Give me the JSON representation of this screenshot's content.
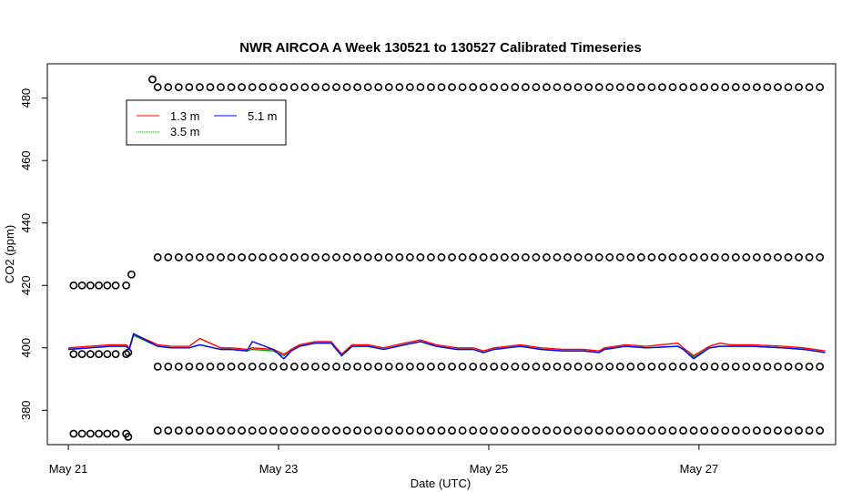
{
  "chart_data": {
    "type": "line",
    "title": "NWR AIRCOA A  Week 130521 to 130527  Calibrated Timeseries",
    "xlabel": "Date (UTC)",
    "ylabel": "CO2 (ppm)",
    "x_ticks": [
      {
        "x": 0,
        "label": "May 21"
      },
      {
        "x": 2,
        "label": "May 23"
      },
      {
        "x": 4,
        "label": "May 25"
      },
      {
        "x": 6,
        "label": "May 27"
      }
    ],
    "y_ticks": [
      380,
      400,
      420,
      440,
      460,
      480
    ],
    "xlim": [
      -0.2,
      7.3
    ],
    "ylim": [
      369,
      491
    ],
    "grid": false,
    "legend_placement": "top-left",
    "colors": {
      "red": "#ff0000",
      "green": "#00a000",
      "blue": "#0000ff"
    },
    "series": [
      {
        "name": "1.3 m",
        "color": "#ff0000",
        "x": [
          0,
          0.2,
          0.4,
          0.55,
          0.58,
          0.62,
          0.85,
          0.98,
          1.05,
          1.15,
          1.25,
          1.45,
          1.55,
          1.7,
          1.75,
          1.95,
          2.05,
          2.08,
          2.12,
          2.2,
          2.35,
          2.5,
          2.6,
          2.7,
          2.85,
          3.0,
          3.2,
          3.35,
          3.5,
          3.7,
          3.85,
          3.95,
          4.05,
          4.3,
          4.5,
          4.7,
          4.9,
          5.05,
          5.1,
          5.3,
          5.5,
          5.8,
          5.85,
          5.95,
          6.1,
          6.2,
          6.3,
          6.5,
          6.8,
          7.0,
          7.2
        ],
        "y": [
          400,
          400.5,
          401,
          401,
          400,
          404.5,
          401,
          400.5,
          400.5,
          400.5,
          403,
          400,
          400,
          399.5,
          400,
          399.5,
          398,
          398.5,
          399.5,
          401,
          402,
          402,
          398,
          401,
          401,
          400,
          401.5,
          402.5,
          401,
          400,
          400,
          399,
          400,
          401,
          400,
          399.5,
          399.5,
          399,
          400,
          401,
          400.5,
          401.5,
          400,
          397.5,
          400.5,
          401.5,
          401,
          401,
          400.5,
          400,
          399
        ]
      },
      {
        "name": "3.5 m",
        "color": "#00a000",
        "x": [
          0,
          0.2,
          0.4,
          0.55,
          0.58,
          0.62,
          0.85,
          0.98,
          1.05,
          1.15,
          1.25,
          1.45,
          1.55,
          1.7,
          1.75,
          1.95,
          2.05,
          2.08,
          2.12,
          2.2,
          2.35,
          2.5,
          2.6,
          2.7,
          2.85,
          3.0,
          3.2,
          3.35,
          3.5,
          3.7,
          3.85,
          3.95,
          4.05,
          4.3,
          4.5,
          4.7,
          4.9,
          5.05,
          5.1,
          5.3,
          5.5,
          5.8,
          5.85,
          5.95,
          6.1,
          6.2,
          6.3,
          6.5,
          6.8,
          7.0,
          7.2
        ],
        "y": [
          399.5,
          400,
          400.5,
          400.5,
          399.5,
          404,
          400.5,
          400,
          400,
          400,
          401,
          399.5,
          399.5,
          399,
          399.5,
          399,
          397.5,
          398,
          399,
          400.5,
          401.5,
          401.5,
          397.5,
          400.5,
          400.5,
          399.5,
          401,
          402,
          400.5,
          399.5,
          399.5,
          398.5,
          399.5,
          400.5,
          399.5,
          399,
          399,
          398.5,
          399.5,
          400.5,
          400,
          400.5,
          399.5,
          397,
          400,
          400.5,
          400.5,
          400.5,
          400,
          399.5,
          398.5
        ]
      },
      {
        "name": "5.1 m",
        "color": "#0000ff",
        "x": [
          0,
          0.2,
          0.4,
          0.55,
          0.58,
          0.62,
          0.85,
          0.98,
          1.05,
          1.15,
          1.25,
          1.45,
          1.55,
          1.7,
          1.75,
          1.95,
          2.05,
          2.08,
          2.12,
          2.2,
          2.35,
          2.5,
          2.6,
          2.7,
          2.85,
          3.0,
          3.2,
          3.35,
          3.5,
          3.7,
          3.85,
          3.95,
          4.05,
          4.3,
          4.5,
          4.7,
          4.9,
          5.05,
          5.1,
          5.3,
          5.5,
          5.8,
          5.85,
          5.95,
          6.1,
          6.2,
          6.3,
          6.5,
          6.8,
          7.0,
          7.2
        ],
        "y": [
          399.5,
          400,
          400.5,
          400.5,
          399.5,
          404.5,
          400.5,
          400,
          400,
          400,
          401,
          399.5,
          399.5,
          399,
          402,
          399.5,
          396.5,
          397.5,
          399,
          400.5,
          401.5,
          401.5,
          397.5,
          400.5,
          400.5,
          399.5,
          401,
          402,
          400.5,
          399.5,
          399.5,
          398.5,
          399.5,
          400.5,
          399.5,
          399,
          399,
          398.5,
          399.5,
          400.5,
          400,
          400.5,
          399.5,
          396.5,
          400,
          400.5,
          400.5,
          400.5,
          400,
          399.5,
          398.5
        ]
      }
    ],
    "calibration_points": {
      "before": {
        "x": [
          0.05,
          0.13,
          0.21,
          0.29,
          0.37,
          0.45,
          0.55
        ],
        "levels": [
          420,
          398,
          372.5
        ],
        "extra": [
          {
            "x": 0.6,
            "y": 423.5
          },
          {
            "x": 0.57,
            "y": 398.5
          },
          {
            "x": 0.57,
            "y": 371.5
          }
        ]
      },
      "after": {
        "x": [
          0.85,
          0.95,
          1.05,
          1.15,
          1.25,
          1.35,
          1.45,
          1.55,
          1.65,
          1.75,
          1.85,
          1.95,
          2.05,
          2.15,
          2.25,
          2.35,
          2.45,
          2.55,
          2.65,
          2.75,
          2.85,
          2.95,
          3.05,
          3.15,
          3.25,
          3.35,
          3.45,
          3.55,
          3.65,
          3.75,
          3.85,
          3.95,
          4.05,
          4.15,
          4.25,
          4.35,
          4.45,
          4.55,
          4.65,
          4.75,
          4.85,
          4.95,
          5.05,
          5.15,
          5.25,
          5.35,
          5.45,
          5.55,
          5.65,
          5.75,
          5.85,
          5.95,
          6.05,
          6.15,
          6.25,
          6.35,
          6.45,
          6.55,
          6.65,
          6.75,
          6.85,
          6.95,
          7.05,
          7.15
        ],
        "levels": [
          483.5,
          429,
          394,
          373.5
        ],
        "extra": [
          {
            "x": 0.8,
            "y": 486
          }
        ]
      }
    }
  }
}
